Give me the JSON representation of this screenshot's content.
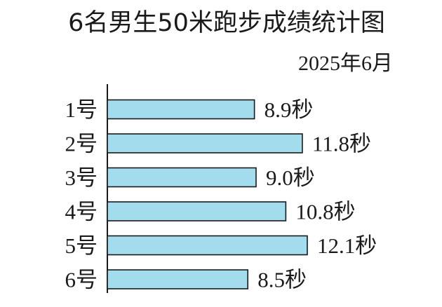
{
  "chart_data": {
    "type": "bar",
    "orientation": "horizontal",
    "title": "6名男生50米跑步成绩统计图",
    "subtitle": "2025年6月",
    "categories": [
      "1号",
      "2号",
      "3号",
      "4号",
      "5号",
      "6号"
    ],
    "values": [
      8.9,
      11.8,
      9.0,
      10.8,
      12.1,
      8.5
    ],
    "value_labels": [
      "8.9秒",
      "11.8秒",
      "9.0秒",
      "10.8秒",
      "12.1秒",
      "8.5秒"
    ],
    "unit": "秒",
    "bar_color": "#a3dcec",
    "grid": false,
    "legend": "none"
  }
}
